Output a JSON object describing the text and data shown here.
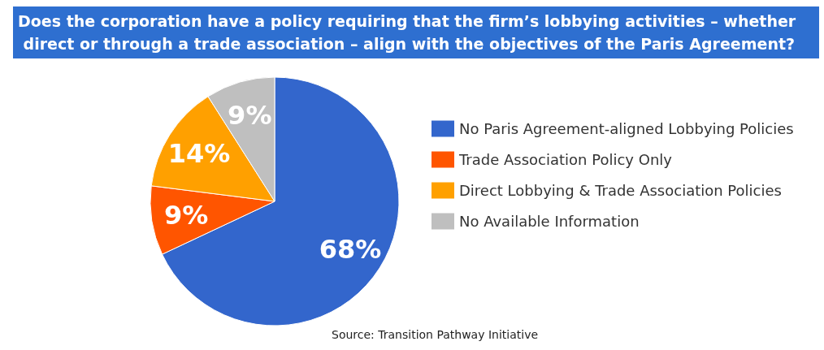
{
  "chart_data": {
    "type": "pie",
    "title": "Does the corporation have a policy requiring that the firm’s lobbying activities – whether direct or through a trade association – align with the objectives of the Paris Agreement?",
    "categories": [
      "No Paris Agreement-aligned Lobbying Policies",
      "Trade Association Policy Only",
      "Direct Lobbying & Trade Association Policies",
      "No Available Information"
    ],
    "values": [
      68,
      9,
      14,
      9
    ],
    "colors": [
      "#3366cc",
      "#ff5500",
      "#ffa000",
      "#bfbfbf"
    ],
    "value_labels": [
      "68%",
      "9%",
      "14%",
      "9%"
    ],
    "legend": "right",
    "annotations": [
      "Source: Transition Pathway Initiative"
    ]
  }
}
